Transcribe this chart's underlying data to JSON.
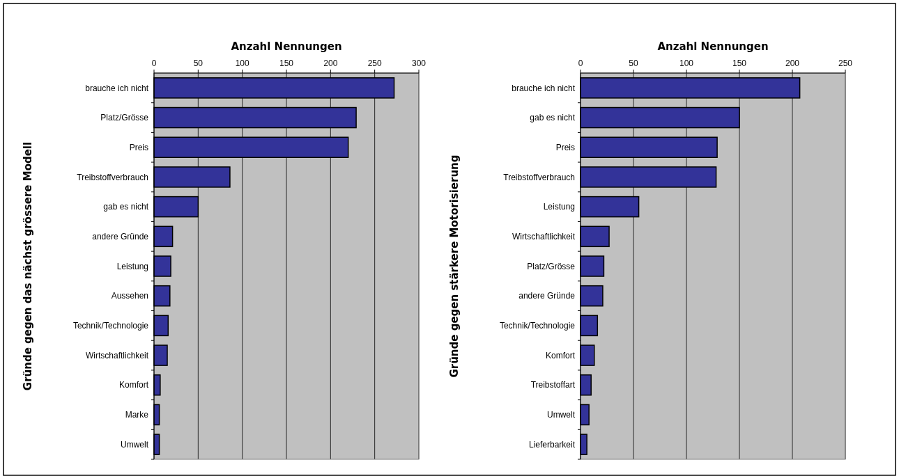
{
  "chart_data": [
    {
      "type": "bar",
      "orientation": "horizontal",
      "xlabel": "Anzahl Nennungen",
      "ylabel": "Gründe gegen das nächst grössere Modell",
      "categories": [
        "brauche ich nicht",
        "Platz/Grösse",
        "Preis",
        "Treibstoffverbrauch",
        "gab es nicht",
        "andere Gründe",
        "Leistung",
        "Aussehen",
        "Technik/Technologie",
        "Wirtschaftlichkeit",
        "Komfort",
        "Marke",
        "Umwelt"
      ],
      "values": [
        272,
        229,
        220,
        86,
        50,
        21,
        19,
        18,
        16,
        15,
        7,
        6,
        6
      ],
      "color": "#333399",
      "xlim": [
        0,
        300
      ],
      "xticks": [
        0,
        50,
        100,
        150,
        200,
        250,
        300
      ],
      "grid": "x"
    },
    {
      "type": "bar",
      "orientation": "horizontal",
      "xlabel": "Anzahl Nennungen",
      "ylabel": "Gründe gegen stärkere Motorisierung",
      "categories": [
        "brauche ich nicht",
        "gab es nicht",
        "Preis",
        "Treibstoffverbrauch",
        "Leistung",
        "Wirtschaftlichkeit",
        "Platz/Grösse",
        "andere Gründe",
        "Technik/Technologie",
        "Komfort",
        "Treibstoffart",
        "Umwelt",
        "Lieferbarkeit"
      ],
      "values": [
        207,
        150,
        129,
        128,
        55,
        27,
        22,
        21,
        16,
        13,
        10,
        8,
        6
      ],
      "color": "#333399",
      "xlim": [
        0,
        250
      ],
      "xticks": [
        0,
        50,
        100,
        150,
        200,
        250
      ],
      "grid": "x"
    }
  ]
}
